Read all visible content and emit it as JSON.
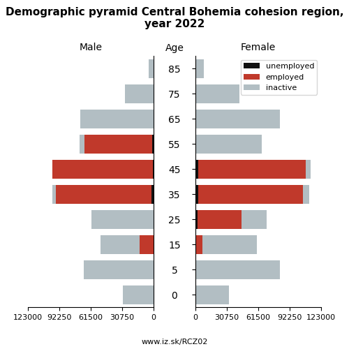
{
  "title": "Demographic pyramid Central Bohemia cohesion region, year 2022",
  "subtitle": "www.iz.sk/RCZ02",
  "chart_data": [
    {
      "type": "bar",
      "orientation": "horizontal",
      "stacked": true,
      "title": "Male",
      "ylabel": "Age",
      "categories": [
        "85",
        "75",
        "65",
        "55",
        "45",
        "35",
        "25",
        "15",
        "5",
        "0"
      ],
      "series": [
        {
          "name": "unemployed",
          "color": "#111111",
          "values": [
            0,
            0,
            0,
            1500,
            1000,
            2000,
            0,
            0,
            0,
            0
          ]
        },
        {
          "name": "employed",
          "color": "#c0392b",
          "values": [
            0,
            0,
            0,
            66000,
            98000,
            94000,
            0,
            14000,
            0,
            0
          ]
        },
        {
          "name": "inactive",
          "color": "#b2bec3",
          "values": [
            5000,
            28000,
            72000,
            5000,
            0,
            3000,
            61000,
            38000,
            68000,
            30000
          ]
        }
      ],
      "xlim": [
        123000,
        0
      ],
      "xticks": [
        0,
        30750,
        61500,
        92250,
        123000
      ]
    },
    {
      "type": "bar",
      "orientation": "horizontal",
      "stacked": true,
      "title": "Female",
      "tick_labels": "x",
      "legend": "upper right",
      "categories": [
        "85",
        "75",
        "65",
        "55",
        "45",
        "35",
        "25",
        "15",
        "5",
        "0"
      ],
      "series": [
        {
          "name": "unemployed",
          "color": "#111111",
          "values": [
            0,
            0,
            0,
            0,
            3000,
            2500,
            2000,
            0,
            0,
            0
          ]
        },
        {
          "name": "employed",
          "color": "#c0392b",
          "values": [
            0,
            0,
            0,
            0,
            105000,
            103000,
            43000,
            7000,
            0,
            0
          ]
        },
        {
          "name": "inactive",
          "color": "#b2bec3",
          "values": [
            8000,
            43000,
            83000,
            65000,
            5000,
            6000,
            25000,
            53000,
            83000,
            33000
          ]
        }
      ],
      "xlim": [
        0,
        123000
      ],
      "xticks": [
        0,
        30750,
        61500,
        92250,
        123000
      ]
    }
  ]
}
